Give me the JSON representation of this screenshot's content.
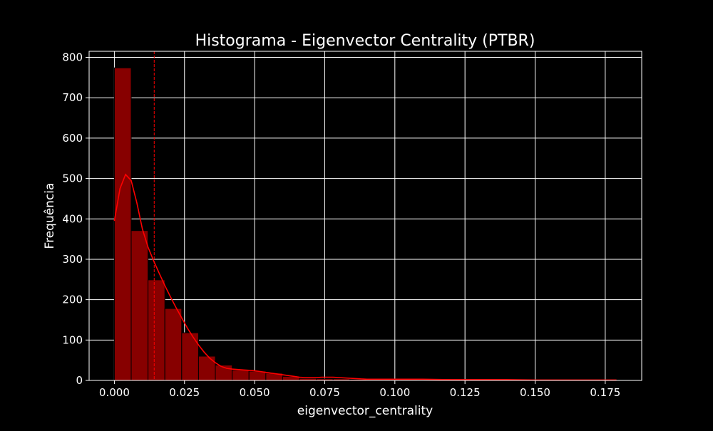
{
  "chart_data": {
    "type": "bar",
    "title": "Histograma - Eigenvector Centrality (PTBR)",
    "xlabel": "eigenvector_centrality",
    "ylabel": "Frequência",
    "xlim": [
      -0.009,
      0.188
    ],
    "ylim": [
      0,
      815
    ],
    "xticks": [
      0.0,
      0.025,
      0.05,
      0.075,
      0.1,
      0.125,
      0.15,
      0.175
    ],
    "xtick_labels": [
      "0.000",
      "0.025",
      "0.050",
      "0.075",
      "0.100",
      "0.125",
      "0.150",
      "0.175"
    ],
    "yticks": [
      0,
      100,
      200,
      300,
      400,
      500,
      600,
      700,
      800
    ],
    "ytick_labels": [
      "0",
      "100",
      "200",
      "300",
      "400",
      "500",
      "600",
      "700",
      "800"
    ],
    "grid": true,
    "bin_width": 0.006,
    "bins": [
      {
        "x0": 0.0,
        "value": 774
      },
      {
        "x0": 0.006,
        "value": 371
      },
      {
        "x0": 0.012,
        "value": 249
      },
      {
        "x0": 0.018,
        "value": 178
      },
      {
        "x0": 0.024,
        "value": 118
      },
      {
        "x0": 0.03,
        "value": 60
      },
      {
        "x0": 0.036,
        "value": 38
      },
      {
        "x0": 0.042,
        "value": 26
      },
      {
        "x0": 0.048,
        "value": 23
      },
      {
        "x0": 0.054,
        "value": 18
      },
      {
        "x0": 0.06,
        "value": 10
      },
      {
        "x0": 0.066,
        "value": 5
      },
      {
        "x0": 0.072,
        "value": 4
      },
      {
        "x0": 0.078,
        "value": 4
      },
      {
        "x0": 0.084,
        "value": 3
      },
      {
        "x0": 0.09,
        "value": 2
      },
      {
        "x0": 0.096,
        "value": 2
      },
      {
        "x0": 0.102,
        "value": 2
      },
      {
        "x0": 0.108,
        "value": 1
      },
      {
        "x0": 0.114,
        "value": 1
      },
      {
        "x0": 0.12,
        "value": 1
      },
      {
        "x0": 0.126,
        "value": 1
      },
      {
        "x0": 0.132,
        "value": 1
      },
      {
        "x0": 0.138,
        "value": 1
      },
      {
        "x0": 0.144,
        "value": 1
      },
      {
        "x0": 0.15,
        "value": 1
      },
      {
        "x0": 0.156,
        "value": 1
      },
      {
        "x0": 0.162,
        "value": 1
      },
      {
        "x0": 0.168,
        "value": 1
      },
      {
        "x0": 0.174,
        "value": 1
      }
    ],
    "kde": {
      "x": [
        0.0,
        0.002,
        0.004,
        0.006,
        0.008,
        0.01,
        0.012,
        0.014,
        0.016,
        0.018,
        0.02,
        0.022,
        0.024,
        0.026,
        0.028,
        0.03,
        0.032,
        0.034,
        0.036,
        0.038,
        0.04,
        0.042,
        0.044,
        0.046,
        0.048,
        0.05,
        0.052,
        0.054,
        0.056,
        0.058,
        0.06,
        0.062,
        0.064,
        0.066,
        0.068,
        0.07,
        0.072,
        0.074,
        0.076,
        0.078,
        0.08,
        0.085,
        0.09,
        0.095,
        0.1,
        0.11,
        0.12,
        0.13,
        0.14,
        0.15,
        0.16,
        0.17,
        0.179
      ],
      "y": [
        395,
        475,
        510,
        495,
        440,
        375,
        330,
        296,
        265,
        235,
        207,
        180,
        155,
        130,
        108,
        88,
        70,
        55,
        44,
        35,
        30,
        28,
        27,
        26,
        25,
        24,
        22,
        20,
        18,
        16,
        14,
        12,
        10,
        8,
        7,
        7,
        7,
        8,
        8,
        8,
        7,
        5,
        3,
        3,
        3,
        3,
        2,
        2,
        2,
        1,
        1,
        1,
        1
      ]
    },
    "mean_line": {
      "x": 0.0142,
      "color": "#ff0000"
    },
    "colors": {
      "bar_fill": "#870000",
      "bar_edge": "#000000",
      "kde_line": "#ff0000",
      "grid": "#ffffff",
      "background": "#000000",
      "text": "#ffffff"
    }
  }
}
